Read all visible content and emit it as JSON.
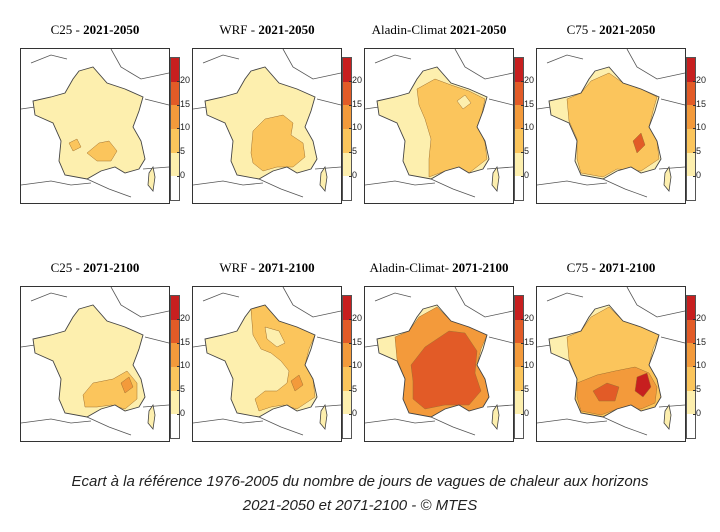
{
  "panels": [
    {
      "model": "C25",
      "sep": " - ",
      "period": "2021-2050",
      "pattern": "c25_near"
    },
    {
      "model": "WRF",
      "sep": " - ",
      "period": "2021-2050",
      "pattern": "wrf_near"
    },
    {
      "model": "Aladin-Climat",
      "sep": " ",
      "period": "2021-2050",
      "pattern": "aladin_near"
    },
    {
      "model": "C75",
      "sep": " - ",
      "period": "2021-2050",
      "pattern": "c75_near"
    },
    {
      "model": "C25",
      "sep": " - ",
      "period": "2071-2100",
      "pattern": "c25_far"
    },
    {
      "model": "WRF",
      "sep": " - ",
      "period": "2071-2100",
      "pattern": "wrf_far"
    },
    {
      "model": "Aladin-Climat-",
      "sep": " ",
      "period": "2071-2100",
      "pattern": "aladin_far"
    },
    {
      "model": "C75",
      "sep": " - ",
      "period": "2071-2100",
      "pattern": "c75_far"
    }
  ],
  "colorbar": {
    "ticks": [
      "20",
      "15",
      "10",
      "5",
      "0"
    ],
    "colors": [
      "#ffffff",
      "#fdefae",
      "#fbc55c",
      "#f39a3b",
      "#e25b27",
      "#c71f1f"
    ]
  },
  "caption": {
    "line1": "Ecart à la référence 1976-2005 du nombre de jours de vagues de chaleur aux horizons",
    "line2": "2021-2050 et 2071-2100 - © MTES"
  }
}
